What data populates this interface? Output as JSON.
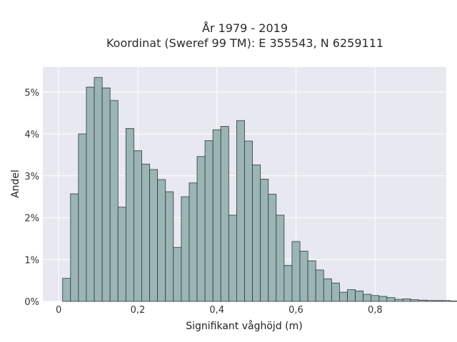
{
  "chart_data": {
    "type": "bar",
    "title": "År 1979 - 2019",
    "subtitle": "Koordinat (Sweref 99 TM): E 355543, N 6259111",
    "xlabel": "Signifikant våghöjd (m)",
    "ylabel": "Andel",
    "xlim": [
      -0.04,
      0.98
    ],
    "ylim": [
      0,
      5.6
    ],
    "x_ticks": [
      {
        "v": 0,
        "label": "0"
      },
      {
        "v": 0.2,
        "label": "0,2"
      },
      {
        "v": 0.4,
        "label": "0,4"
      },
      {
        "v": 0.6,
        "label": "0,6"
      },
      {
        "v": 0.8,
        "label": "0,8"
      }
    ],
    "y_ticks": [
      {
        "v": 0,
        "label": "0%"
      },
      {
        "v": 1,
        "label": "1%"
      },
      {
        "v": 2,
        "label": "2%"
      },
      {
        "v": 3,
        "label": "3%"
      },
      {
        "v": 4,
        "label": "4%"
      },
      {
        "v": 5,
        "label": "5%"
      }
    ],
    "grid": true,
    "bin_width": 0.02,
    "bin_start": 0.01,
    "values": [
      0.55,
      2.57,
      4.0,
      5.12,
      5.35,
      5.1,
      4.8,
      2.25,
      4.13,
      3.6,
      3.28,
      3.15,
      2.91,
      2.62,
      1.29,
      2.5,
      2.83,
      3.46,
      3.84,
      4.1,
      4.18,
      2.06,
      4.32,
      3.83,
      3.26,
      2.92,
      2.56,
      2.06,
      0.86,
      1.43,
      1.2,
      0.97,
      0.75,
      0.54,
      0.44,
      0.22,
      0.28,
      0.25,
      0.17,
      0.14,
      0.12,
      0.09,
      0.05,
      0.06,
      0.04,
      0.03,
      0.02,
      0.02,
      0.02,
      0.01,
      0.01,
      0.01,
      0.01
    ],
    "colors": {
      "bar_fill": "#9bb4b4",
      "bar_stroke": "#2f3a3a",
      "plot_bg": "#e8e8f0",
      "grid": "#ffffff"
    }
  }
}
